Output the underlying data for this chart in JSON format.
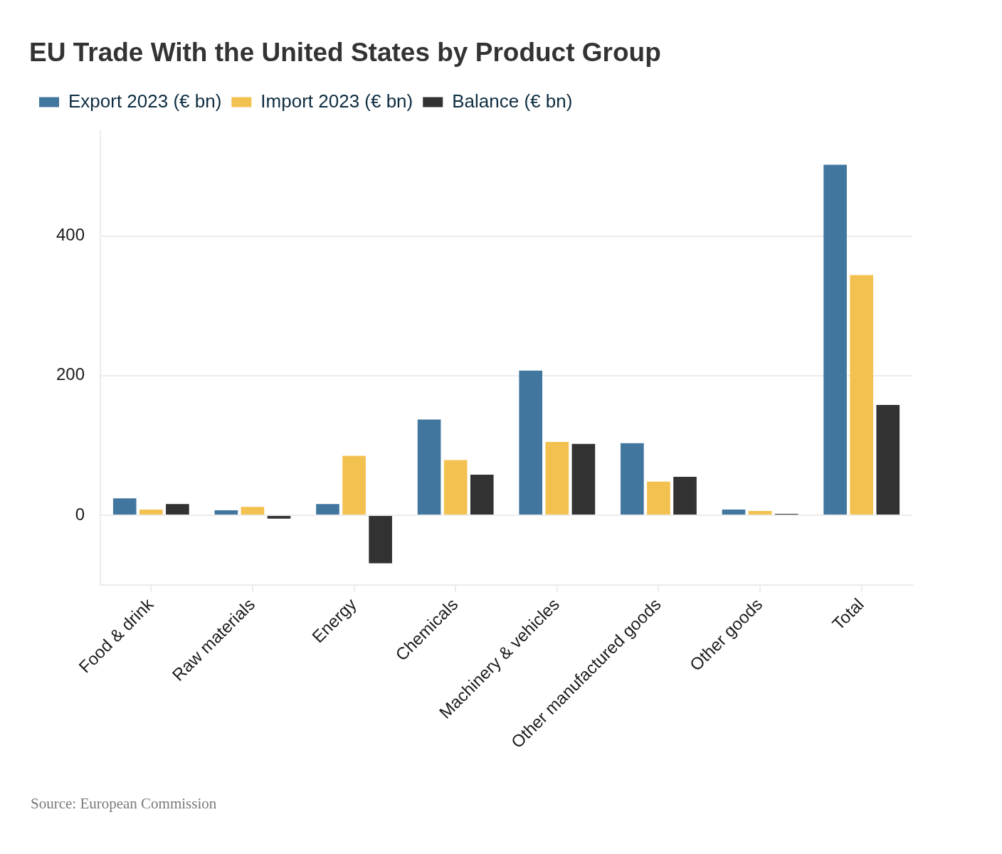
{
  "chart_data": {
    "type": "bar",
    "title": "EU Trade With the United States by Product Group",
    "categories": [
      "Food & drink",
      "Raw materials",
      "Energy",
      "Chemicals",
      "Machinery & vehicles",
      "Other manufactured goods",
      "Other goods",
      "Total"
    ],
    "series": [
      {
        "name": "Export 2023 (€ bn)",
        "color": "#41769f",
        "values": [
          24,
          7,
          16,
          137,
          207,
          103,
          8,
          502
        ]
      },
      {
        "name": "Import 2023 (€ bn)",
        "color": "#f3c14f",
        "values": [
          8,
          12,
          85,
          79,
          105,
          48,
          6,
          344
        ]
      },
      {
        "name": "Balance (€ bn)",
        "color": "#323232",
        "values": [
          16,
          -5,
          -69,
          58,
          102,
          55,
          2,
          158
        ]
      }
    ],
    "ylim": [
      -100,
      550
    ],
    "yticks": [
      0,
      200,
      400
    ],
    "grid": "y",
    "legend": "top left",
    "annotations": [
      "Source: European Commission"
    ]
  }
}
